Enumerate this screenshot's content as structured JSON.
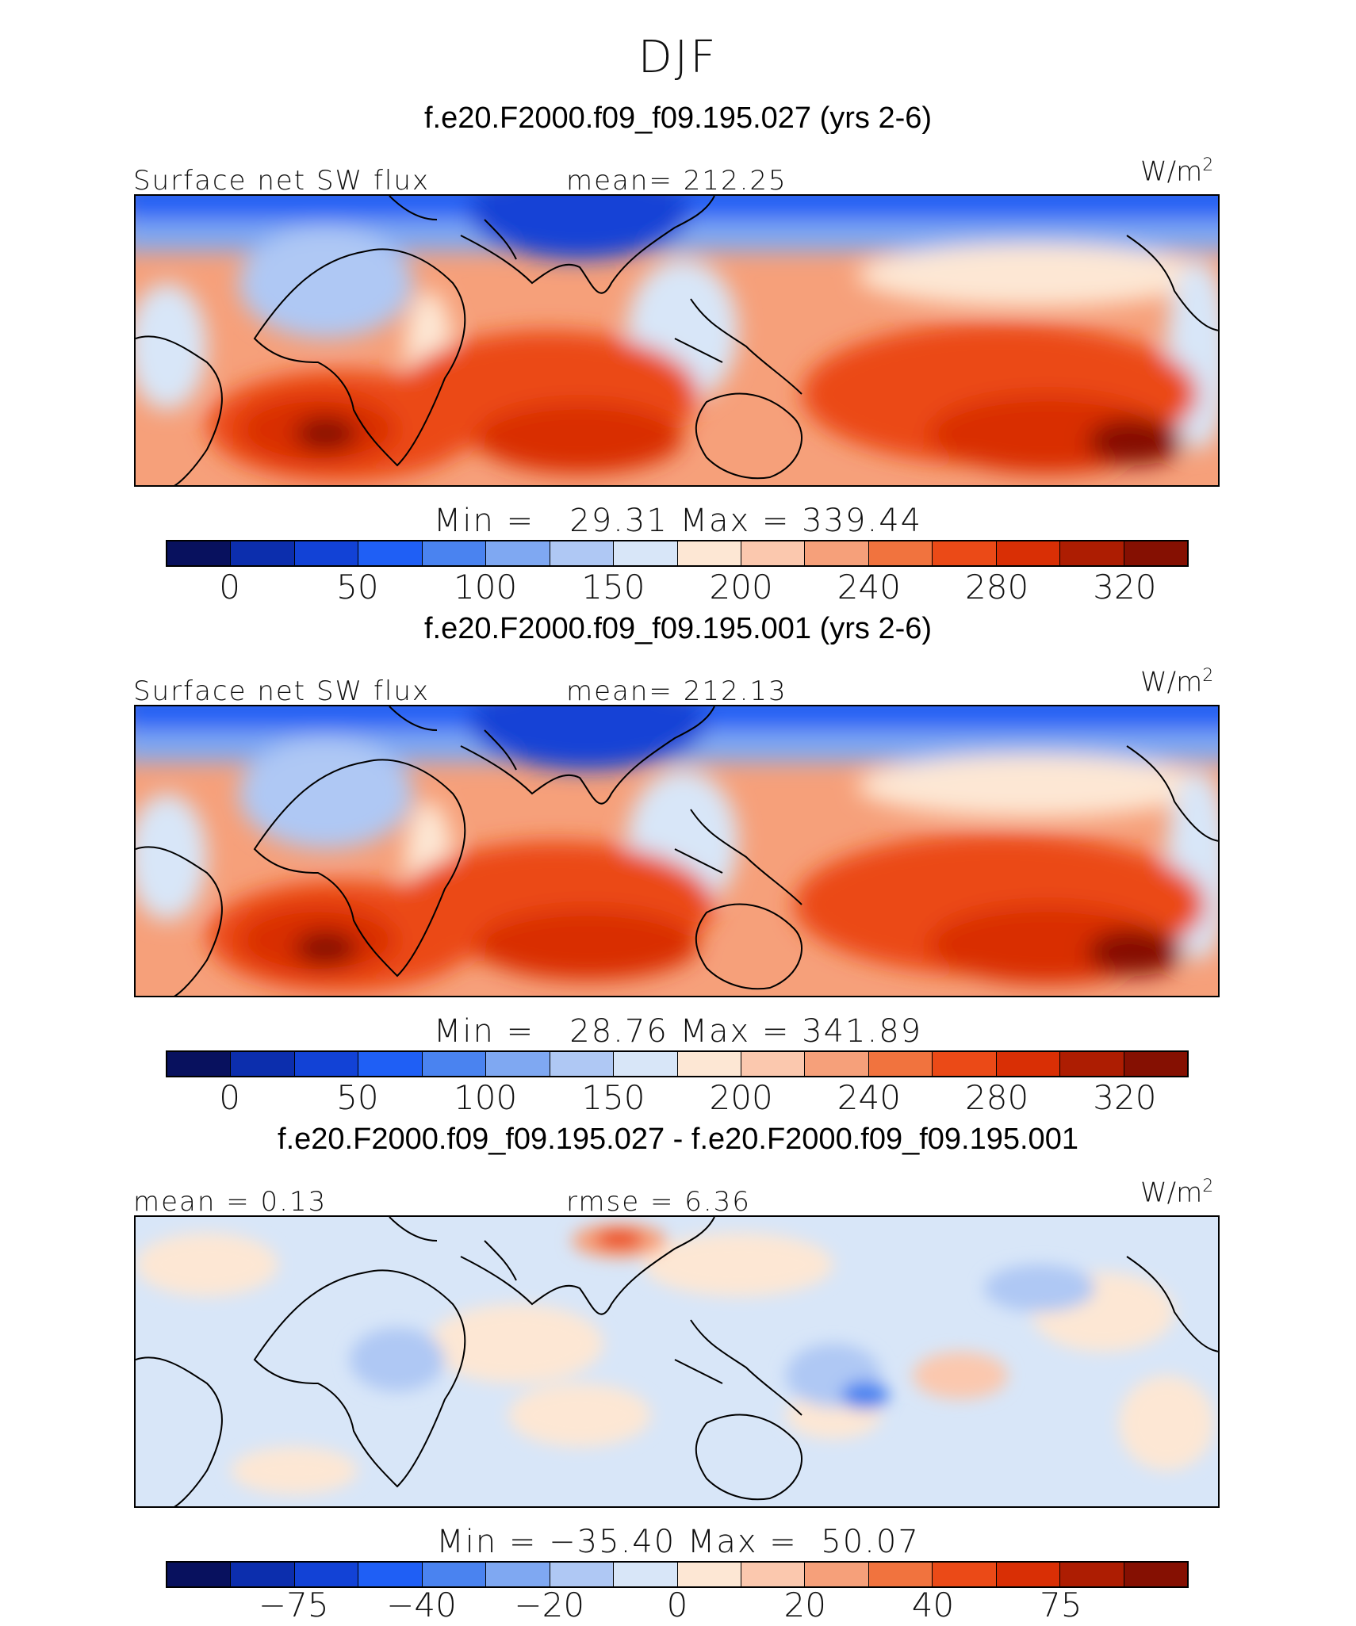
{
  "title": "DJF",
  "colors": {
    "abs_scale": [
      "#08115e",
      "#0c2ead",
      "#1242d6",
      "#1f5ff5",
      "#4a83f0",
      "#7fa8f2",
      "#afc8f4",
      "#d8e6f8",
      "#fde7d4",
      "#fbc8ae",
      "#f6a07a",
      "#f1733e",
      "#eb4a17",
      "#d92f05",
      "#ad1d02",
      "#851002"
    ],
    "diff_scale": [
      "#08115e",
      "#0c2ead",
      "#1242d6",
      "#1f5ff5",
      "#4a83f0",
      "#7fa8f2",
      "#afc8f4",
      "#d8e6f8",
      "#fde7d4",
      "#fbc8ae",
      "#f6a07a",
      "#f1733e",
      "#eb4a17",
      "#d92f05",
      "#ad1d02",
      "#851002"
    ]
  },
  "panels": [
    {
      "case": "f.e20.F2000.f09_f09.195.027 (yrs 2-6)",
      "left_label": "Surface net SW flux",
      "center_label": "mean= 212.25",
      "units": "W/m",
      "units_sup": "2",
      "minmax": "Min =   29.31 Max = 339.44",
      "ticks": [
        "0",
        "50",
        "100",
        "150",
        "200",
        "240",
        "280",
        "320"
      ],
      "tick_positions": [
        1,
        3,
        5,
        7,
        9,
        11,
        13,
        15
      ]
    },
    {
      "case": "f.e20.F2000.f09_f09.195.001 (yrs 2-6)",
      "left_label": "Surface net SW flux",
      "center_label": "mean= 212.13",
      "units": "W/m",
      "units_sup": "2",
      "minmax": "Min =   28.76 Max = 341.89",
      "ticks": [
        "0",
        "50",
        "100",
        "150",
        "200",
        "240",
        "280",
        "320"
      ],
      "tick_positions": [
        1,
        3,
        5,
        7,
        9,
        11,
        13,
        15
      ]
    },
    {
      "case": "f.e20.F2000.f09_f09.195.027 - f.e20.F2000.f09_f09.195.001",
      "left_label": "mean =   0.13",
      "center_label": "rmse =   6.36",
      "units": "W/m",
      "units_sup": "2",
      "minmax": "Min = −35.40 Max =  50.07",
      "ticks": [
        "−75",
        "−40",
        "−20",
        "0",
        "20",
        "40",
        "75"
      ],
      "tick_positions": [
        2,
        4,
        6,
        8,
        10,
        12,
        14
      ]
    }
  ]
}
